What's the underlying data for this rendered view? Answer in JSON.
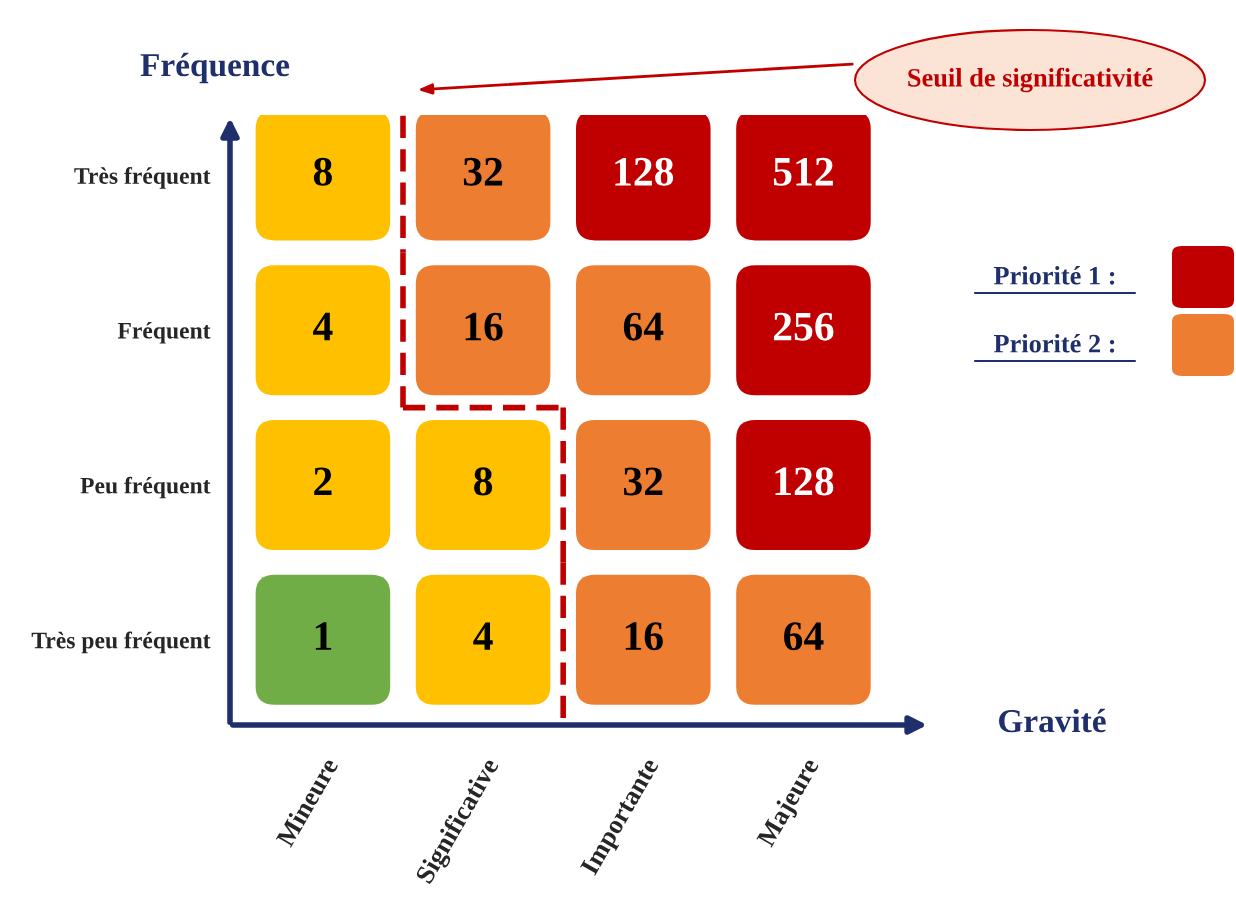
{
  "chart_data": {
    "type": "heatmap",
    "xlabel": "Gravité",
    "ylabel": "Fréquence",
    "categories": [
      "Mineure",
      "Significative",
      "Importante",
      "Majeure"
    ],
    "y_categories": [
      "Très fréquent",
      "Fréquent",
      "Peu fréquent",
      "Très peu fréquent"
    ],
    "cells": [
      [
        8,
        32,
        128,
        512
      ],
      [
        4,
        16,
        64,
        256
      ],
      [
        2,
        8,
        32,
        128
      ],
      [
        1,
        4,
        16,
        64
      ]
    ],
    "colors": [
      [
        "#ffc000",
        "#ed7d31",
        "#c00000",
        "#c00000"
      ],
      [
        "#ffc000",
        "#ed7d31",
        "#ed7d31",
        "#c00000"
      ],
      [
        "#ffc000",
        "#ffc000",
        "#ed7d31",
        "#c00000"
      ],
      [
        "#70ad47",
        "#ffc000",
        "#ed7d31",
        "#ed7d31"
      ]
    ],
    "series": [
      {
        "name": "Priorité 1 :",
        "color": "#c00000",
        "values": [
          null,
          null,
          null,
          null
        ]
      },
      {
        "name": "Priorité 2 :",
        "color": "#ed7d31",
        "values": [
          null,
          null,
          null,
          null
        ]
      }
    ],
    "legend": "right",
    "data_labels": true,
    "annotations": [
      "Seuil de significativité"
    ]
  }
}
